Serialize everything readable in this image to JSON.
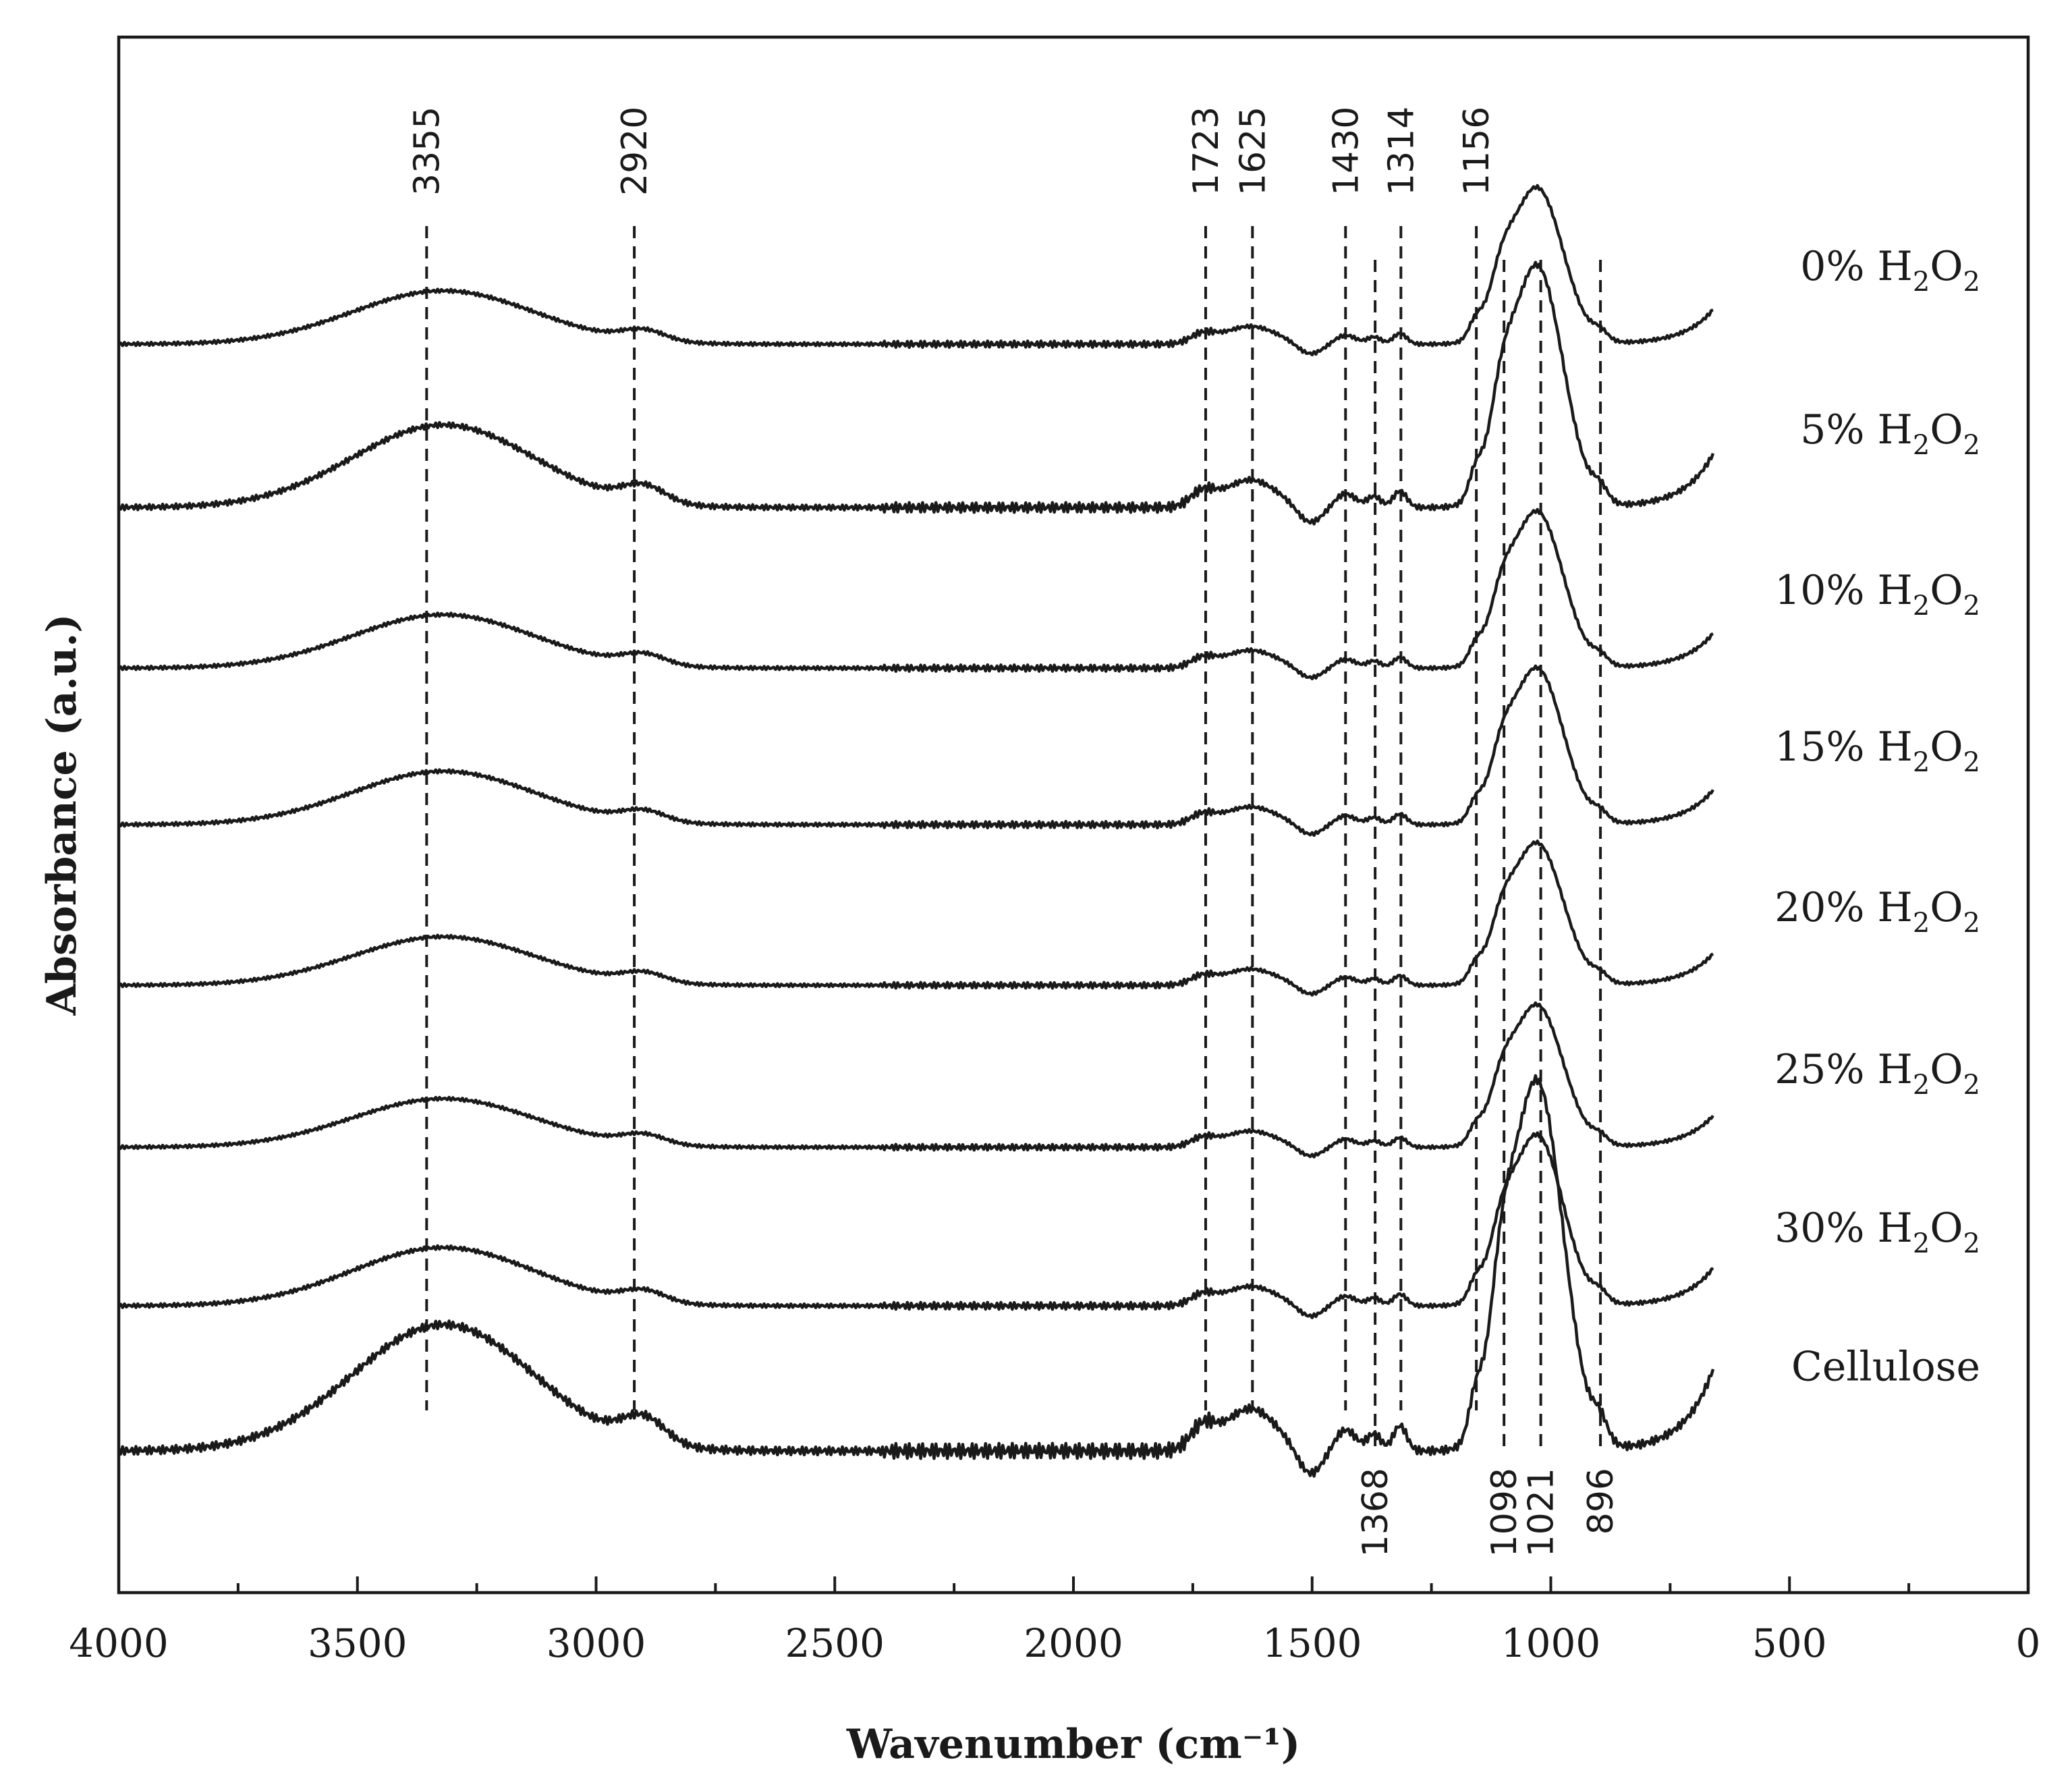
{
  "chart_data": {
    "type": "line",
    "title": "",
    "xlabel": "Wavenumber (cm⁻¹)",
    "ylabel": "Absorbance (a.u.)",
    "xlim": [
      4000,
      0
    ],
    "x_ticks": [
      "4000",
      "3500",
      "3000",
      "2500",
      "2000",
      "1500",
      "1000",
      "500",
      "0"
    ],
    "x_range_measured": [
      4000,
      660
    ],
    "peak_markers_top": [
      "3355",
      "2920",
      "1723",
      "1625",
      "1430",
      "1314",
      "1156"
    ],
    "peak_markers_bottom": [
      "1368",
      "1098",
      "1021",
      "896"
    ],
    "series": [
      {
        "name": "0% H2O2",
        "label_main": "0% H",
        "label_sub1": "2",
        "label_mid": "O",
        "label_sub2": "2",
        "amp": 0.55
      },
      {
        "name": "5% H2O2",
        "label_main": "5% H",
        "label_sub1": "2",
        "label_mid": "O",
        "label_sub2": "2",
        "amp": 0.85
      },
      {
        "name": "10% H2O2",
        "label_main": "10% H",
        "label_sub1": "2",
        "label_mid": "O",
        "label_sub2": "2",
        "amp": 0.55
      },
      {
        "name": "15% H2O2",
        "label_main": "15% H",
        "label_sub1": "2",
        "label_mid": "O",
        "label_sub2": "2",
        "amp": 0.55
      },
      {
        "name": "20% H2O2",
        "label_main": "20% H",
        "label_sub1": "2",
        "label_mid": "O",
        "label_sub2": "2",
        "amp": 0.5
      },
      {
        "name": "25% H2O2",
        "label_main": "25% H",
        "label_sub1": "2",
        "label_mid": "O",
        "label_sub2": "2",
        "amp": 0.5
      },
      {
        "name": "30% H2O2",
        "label_main": "30% H",
        "label_sub1": "2",
        "label_mid": "O",
        "label_sub2": "2",
        "amp": 0.6
      },
      {
        "name": "Cellulose",
        "label_main": "Cellulose",
        "label_sub1": "",
        "label_mid": "",
        "label_sub2": "",
        "amp": 1.3
      }
    ]
  }
}
